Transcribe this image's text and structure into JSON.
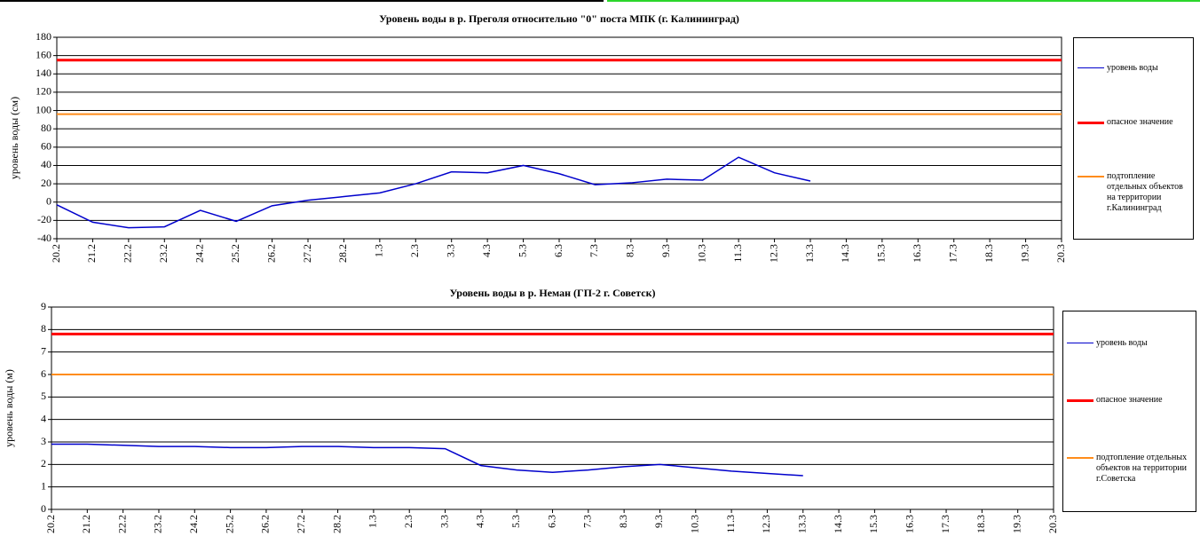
{
  "chart_data": [
    {
      "type": "line",
      "title": "Уровень воды в р. Преголя относительно \"0\" поста МПК (г. Калининград)",
      "ylabel": "уровень воды (см)",
      "categories": [
        "20.2",
        "21.2",
        "22.2",
        "23.2",
        "24.2",
        "25.2",
        "26.2",
        "27.2",
        "28.2",
        "1.3",
        "2.3",
        "3.3",
        "4.3",
        "5.3",
        "6.3",
        "7.3",
        "8.3",
        "9.3",
        "10.3",
        "11.3",
        "12.3",
        "13.3",
        "14.3",
        "15.3",
        "16.3",
        "17.3",
        "18.3",
        "19.3",
        "20.3"
      ],
      "series": [
        {
          "name": "уровень воды",
          "color": "#0000cc",
          "values": [
            -3,
            -22,
            -28,
            -27,
            -9,
            -21,
            -4,
            2,
            6,
            10,
            20,
            33,
            32,
            40,
            31,
            19,
            21,
            25,
            24,
            49,
            32,
            23,
            null,
            null,
            null,
            null,
            null,
            null,
            null
          ]
        },
        {
          "name": "опасное значение",
          "color": "#ff0000",
          "values": [
            155,
            155,
            155,
            155,
            155,
            155,
            155,
            155,
            155,
            155,
            155,
            155,
            155,
            155,
            155,
            155,
            155,
            155,
            155,
            155,
            155,
            155,
            155,
            155,
            155,
            155,
            155,
            155,
            155
          ]
        },
        {
          "name": "подтопление отдельных объектов на территории г.Калининград",
          "color": "#ff8c1a",
          "values": [
            96,
            96,
            96,
            96,
            96,
            96,
            96,
            96,
            96,
            96,
            96,
            96,
            96,
            96,
            96,
            96,
            96,
            96,
            96,
            96,
            96,
            96,
            96,
            96,
            96,
            96,
            96,
            96,
            96
          ]
        }
      ],
      "ylim": [
        -40,
        180
      ],
      "yticks": [
        -40,
        -20,
        0,
        20,
        40,
        60,
        80,
        100,
        120,
        140,
        160,
        180
      ],
      "grid": true,
      "legend": "right"
    },
    {
      "type": "line",
      "title": "Уровень воды в р. Неман (ГП-2 г. Советск)",
      "ylabel": "уровень воды (м)",
      "categories": [
        "20.2",
        "21.2",
        "22.2",
        "23.2",
        "24.2",
        "25.2",
        "26.2",
        "27.2",
        "28.2",
        "1.3",
        "2.3",
        "3.3",
        "4.3",
        "5.3",
        "6.3",
        "7.3",
        "8.3",
        "9.3",
        "10.3",
        "11.3",
        "12.3",
        "13.3",
        "14.3",
        "15.3",
        "16.3",
        "17.3",
        "18.3",
        "19.3",
        "20.3"
      ],
      "series": [
        {
          "name": "уровень воды",
          "color": "#0000cc",
          "values": [
            2.9,
            2.9,
            2.85,
            2.8,
            2.8,
            2.75,
            2.75,
            2.8,
            2.8,
            2.75,
            2.75,
            2.7,
            1.95,
            1.75,
            1.65,
            1.75,
            1.9,
            2.0,
            1.85,
            1.7,
            1.6,
            1.5,
            null,
            null,
            null,
            null,
            null,
            null,
            null
          ]
        },
        {
          "name": "опасное значение",
          "color": "#ff0000",
          "values": [
            7.8,
            7.8,
            7.8,
            7.8,
            7.8,
            7.8,
            7.8,
            7.8,
            7.8,
            7.8,
            7.8,
            7.8,
            7.8,
            7.8,
            7.8,
            7.8,
            7.8,
            7.8,
            7.8,
            7.8,
            7.8,
            7.8,
            7.8,
            7.8,
            7.8,
            7.8,
            7.8,
            7.8,
            7.8
          ]
        },
        {
          "name": "подтопление отдельных объектов на территории г.Советска",
          "color": "#ff8c1a",
          "values": [
            6,
            6,
            6,
            6,
            6,
            6,
            6,
            6,
            6,
            6,
            6,
            6,
            6,
            6,
            6,
            6,
            6,
            6,
            6,
            6,
            6,
            6,
            6,
            6,
            6,
            6,
            6,
            6,
            6
          ]
        }
      ],
      "ylim": [
        0,
        9
      ],
      "yticks": [
        0,
        1,
        2,
        3,
        4,
        5,
        6,
        7,
        8,
        9
      ],
      "grid": true,
      "legend": "right"
    }
  ]
}
